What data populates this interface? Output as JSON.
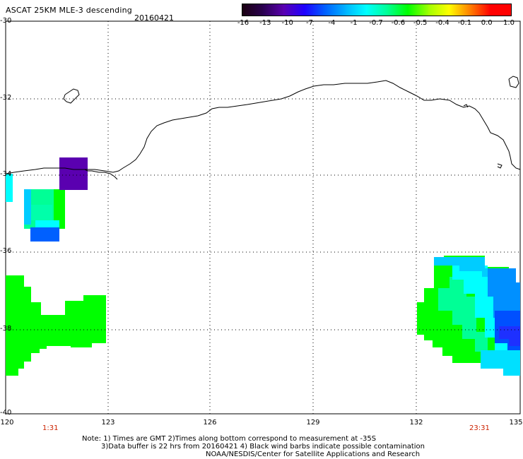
{
  "header": {
    "title": "ASCAT 25KM MLE-3 descending",
    "date": "20160421"
  },
  "colorbar": {
    "labels": [
      "-16",
      "-13",
      "-10",
      "-7",
      "-4",
      "-1",
      "-0.7",
      "-0.6",
      "-0.5",
      "-0.4",
      "-0.1",
      "0.0",
      "1.0"
    ],
    "colors": [
      "#1a0010",
      "#2a0050",
      "#5a00b0",
      "#1e00ff",
      "#0060ff",
      "#00b4ff",
      "#00ffff",
      "#00ff96",
      "#00ff00",
      "#a0ff00",
      "#ffff00",
      "#ff8000",
      "#ff0000"
    ]
  },
  "axes": {
    "lat_labels": [
      "-30",
      "-32",
      "-34",
      "-36",
      "-38",
      "-40"
    ],
    "lon_labels": [
      "120",
      "123",
      "126",
      "129",
      "132",
      "135"
    ]
  },
  "times": {
    "left": "1:31",
    "right": "23:31"
  },
  "notes": {
    "line1": "Note: 1) Times are GMT 2)Times along bottom correspond to measurement at -35S",
    "line2": "3)Data buffer is 22 hrs from 20160421 4) Black wind barbs indicate possible contamination",
    "line3": "NOAA/NESDIS/Center for Satellite Applications and Research"
  },
  "map_colors": {
    "green": "#00ff00",
    "cyan": "#00ffff",
    "teal": "#00ff96",
    "blue": "#0060ff",
    "lightblue": "#00ccff",
    "midblue": "#0090ff",
    "purple": "#5a00b0"
  }
}
